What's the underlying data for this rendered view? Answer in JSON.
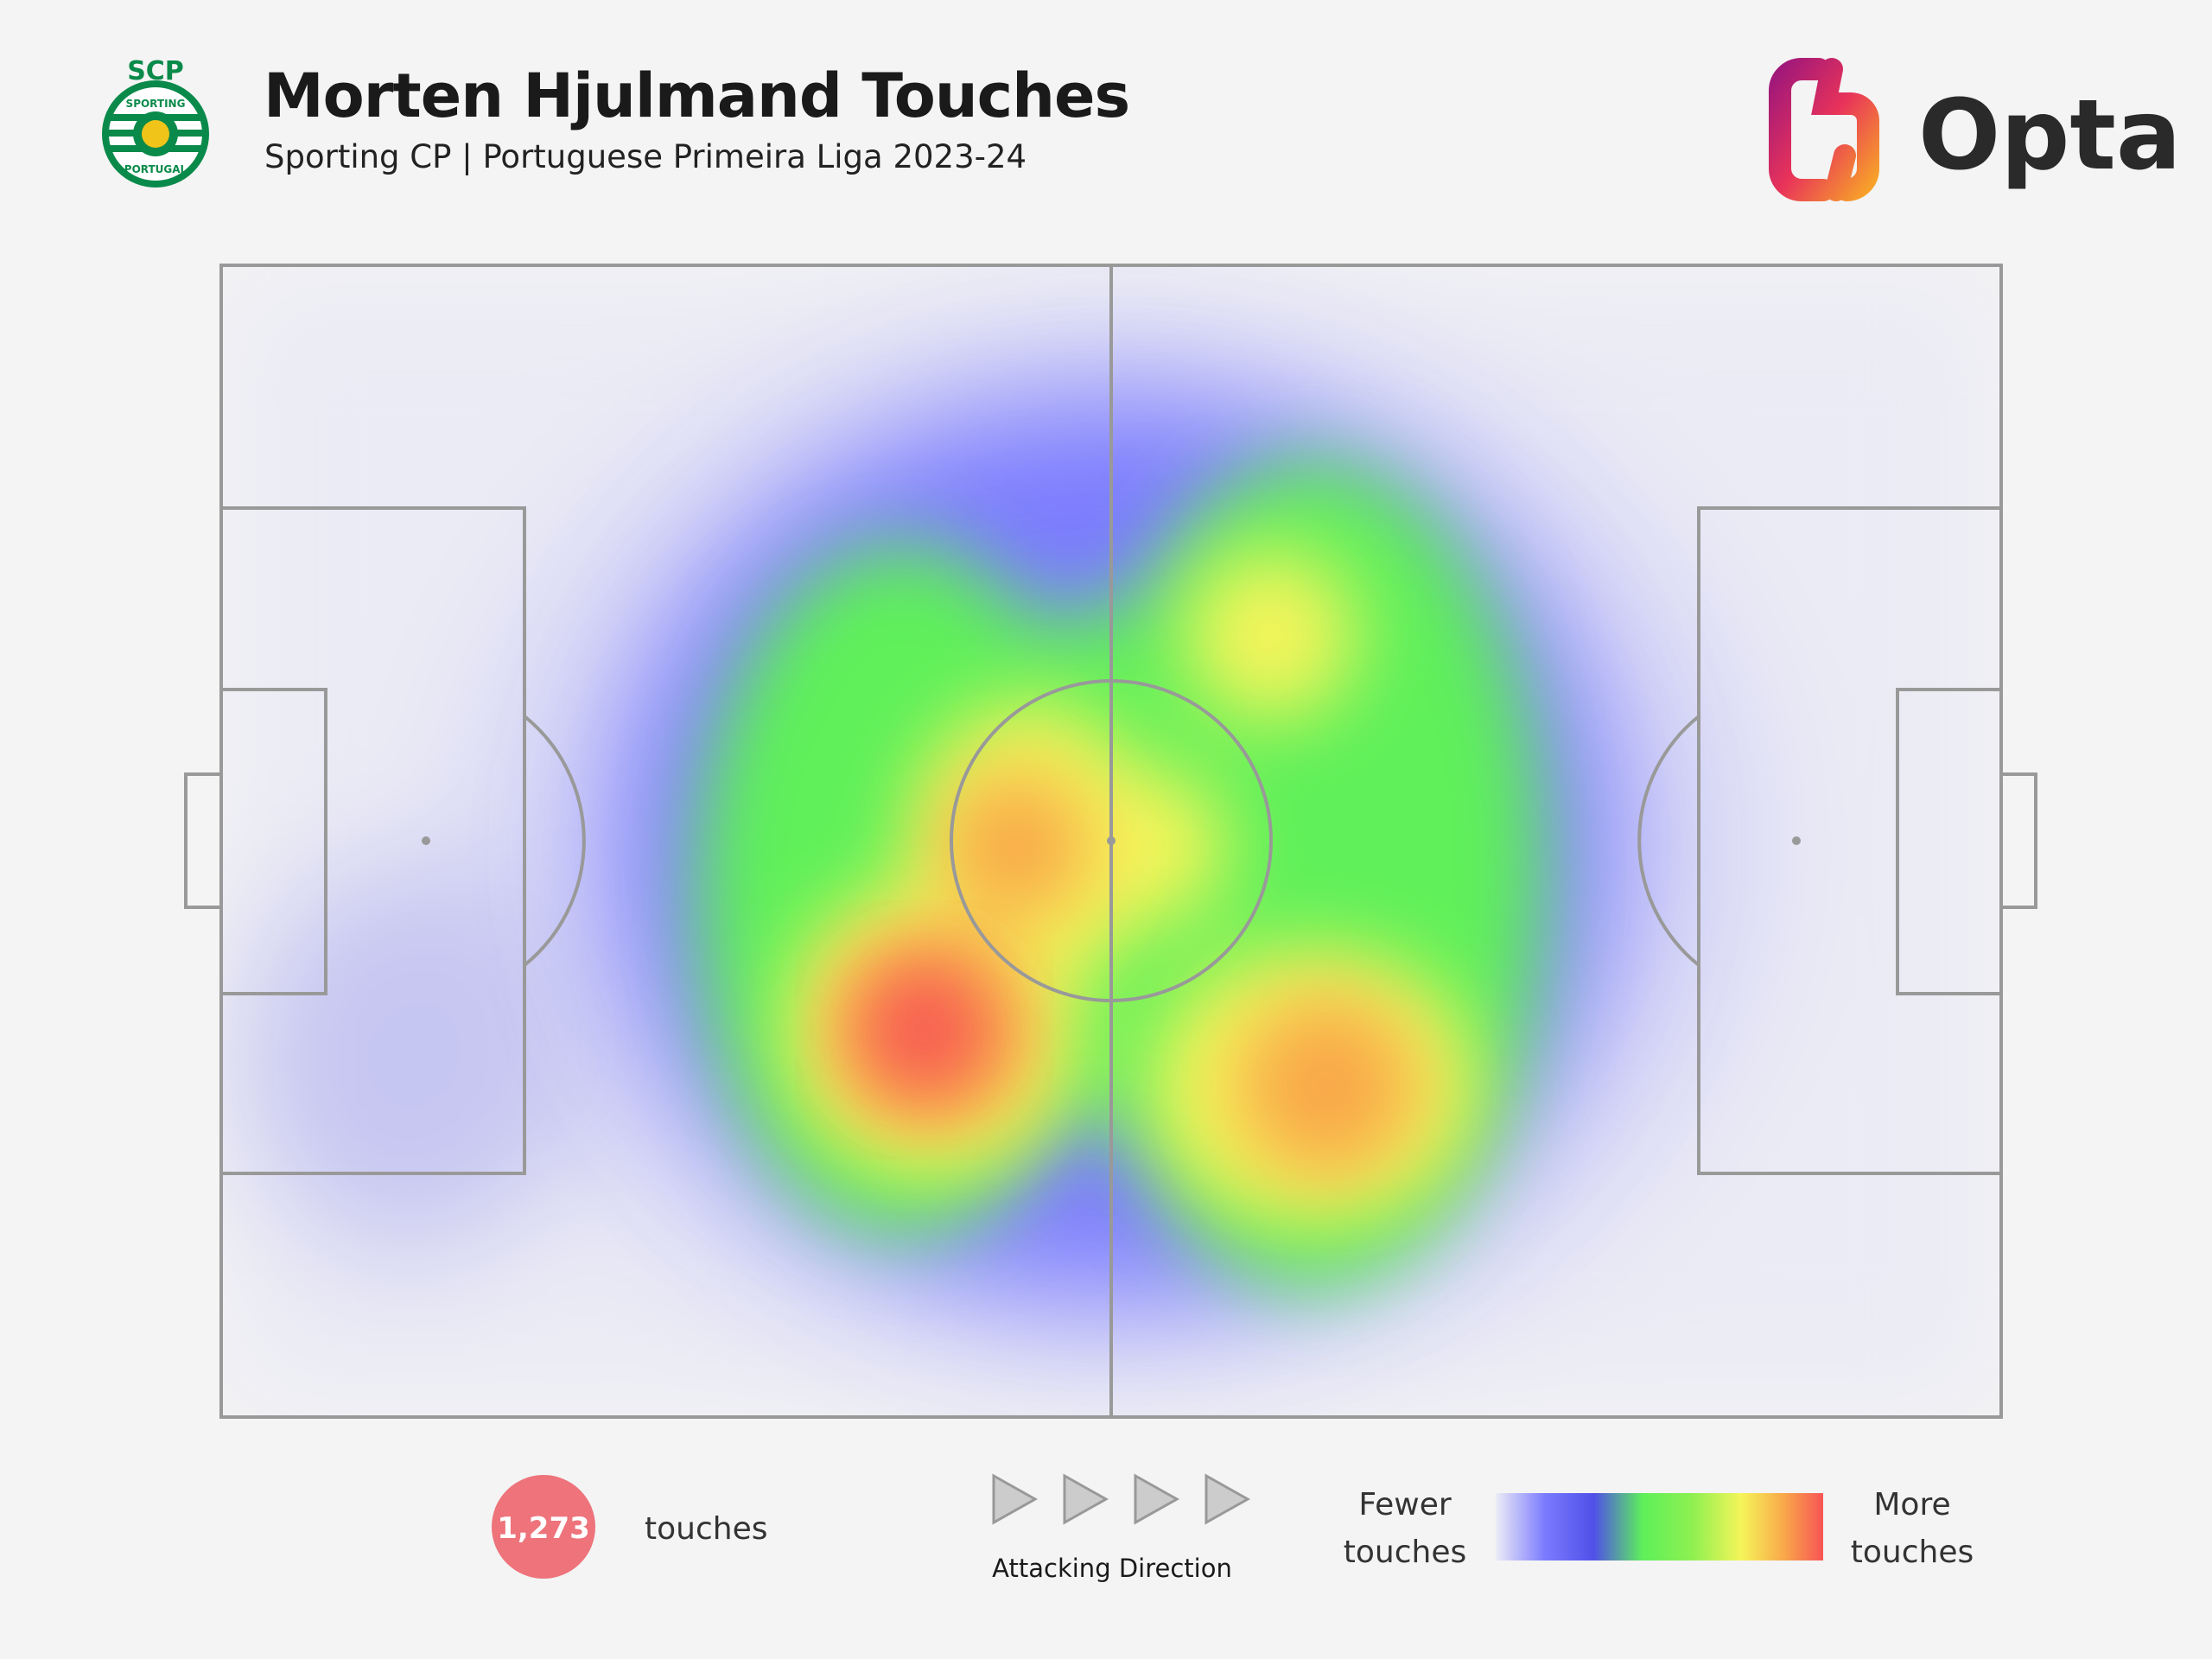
{
  "header": {
    "title": "Morten Hjulmand Touches",
    "subtitle": "Sporting CP | Portuguese Primeira Liga 2023-24"
  },
  "club_logo": {
    "top": "SCP",
    "ring_top": "SPORTING",
    "ring_bottom": "PORTUGAL"
  },
  "brand": "Opta",
  "stats": {
    "touches": {
      "value_label": "1,273",
      "label": "touches"
    }
  },
  "direction": "Attacking Direction",
  "legend": {
    "low": "Fewer touches",
    "high": "More touches"
  }
}
